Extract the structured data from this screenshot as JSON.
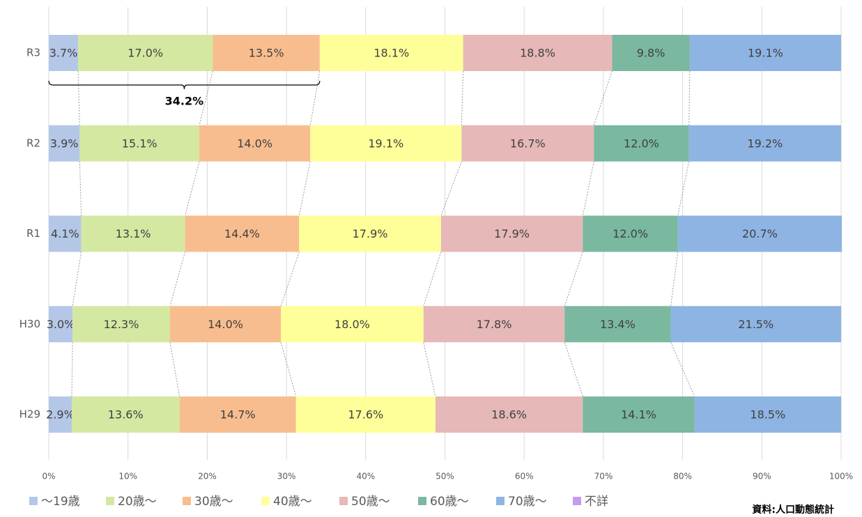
{
  "chart_data": {
    "type": "stacked_barh",
    "categories": [
      "R3",
      "R2",
      "R1",
      "H30",
      "H29"
    ],
    "series": [
      {
        "name": "～19歳",
        "color": "#b4c7e7",
        "values": [
          3.7,
          3.9,
          4.1,
          3.0,
          2.9
        ],
        "value_labels": [
          "3.7%",
          "3.9%",
          "4.1%",
          "3.0%",
          "2.9%"
        ]
      },
      {
        "name": "20歳～",
        "color": "#d5e8a2",
        "values": [
          17.0,
          15.1,
          13.1,
          12.3,
          13.6
        ],
        "value_labels": [
          "17.0%",
          "15.1%",
          "13.1%",
          "12.3%",
          "13.6%"
        ]
      },
      {
        "name": "30歳～",
        "color": "#f8bd8e",
        "values": [
          13.5,
          14.0,
          14.4,
          14.0,
          14.7
        ],
        "value_labels": [
          "13.5%",
          "14.0%",
          "14.4%",
          "14.0%",
          "14.7%"
        ]
      },
      {
        "name": "40歳～",
        "color": "#ffff99",
        "values": [
          18.1,
          19.1,
          17.9,
          18.0,
          17.6
        ],
        "value_labels": [
          "18.1%",
          "19.1%",
          "17.9%",
          "18.0%",
          "17.6%"
        ]
      },
      {
        "name": "50歳～",
        "color": "#e6b8b7",
        "values": [
          18.8,
          16.7,
          17.9,
          17.8,
          18.6
        ],
        "value_labels": [
          "18.8%",
          "16.7%",
          "17.9%",
          "17.8%",
          "18.6%"
        ]
      },
      {
        "name": "60歳～",
        "color": "#7ab8a0",
        "values": [
          9.8,
          12.0,
          12.0,
          13.4,
          14.1
        ],
        "value_labels": [
          "9.8%",
          "12.0%",
          "12.0%",
          "13.4%",
          "14.1%"
        ]
      },
      {
        "name": "70歳～",
        "color": "#8eb4e3",
        "values": [
          19.1,
          19.2,
          20.7,
          21.5,
          18.5
        ],
        "value_labels": [
          "19.1%",
          "19.2%",
          "20.7%",
          "21.5%",
          "18.5%"
        ]
      },
      {
        "name": "不詳",
        "color": "#c49bf0",
        "values": [
          0,
          0,
          0,
          0,
          0
        ]
      }
    ],
    "xlim": [
      0,
      100
    ],
    "xticks": [
      {
        "value": 0,
        "label": "0%"
      },
      {
        "value": 10,
        "label": "10%"
      },
      {
        "value": 20,
        "label": "20%"
      },
      {
        "value": 30,
        "label": "30%"
      },
      {
        "value": 40,
        "label": "40%"
      },
      {
        "value": 50,
        "label": "50%"
      },
      {
        "value": 60,
        "label": "60%"
      },
      {
        "value": 70,
        "label": "70%"
      },
      {
        "value": 80,
        "label": "80%"
      },
      {
        "value": 90,
        "label": "90%"
      },
      {
        "value": 100,
        "label": "100%"
      }
    ],
    "grid": true,
    "annotation": "34.2%",
    "source": "資料:人口動態統計"
  }
}
